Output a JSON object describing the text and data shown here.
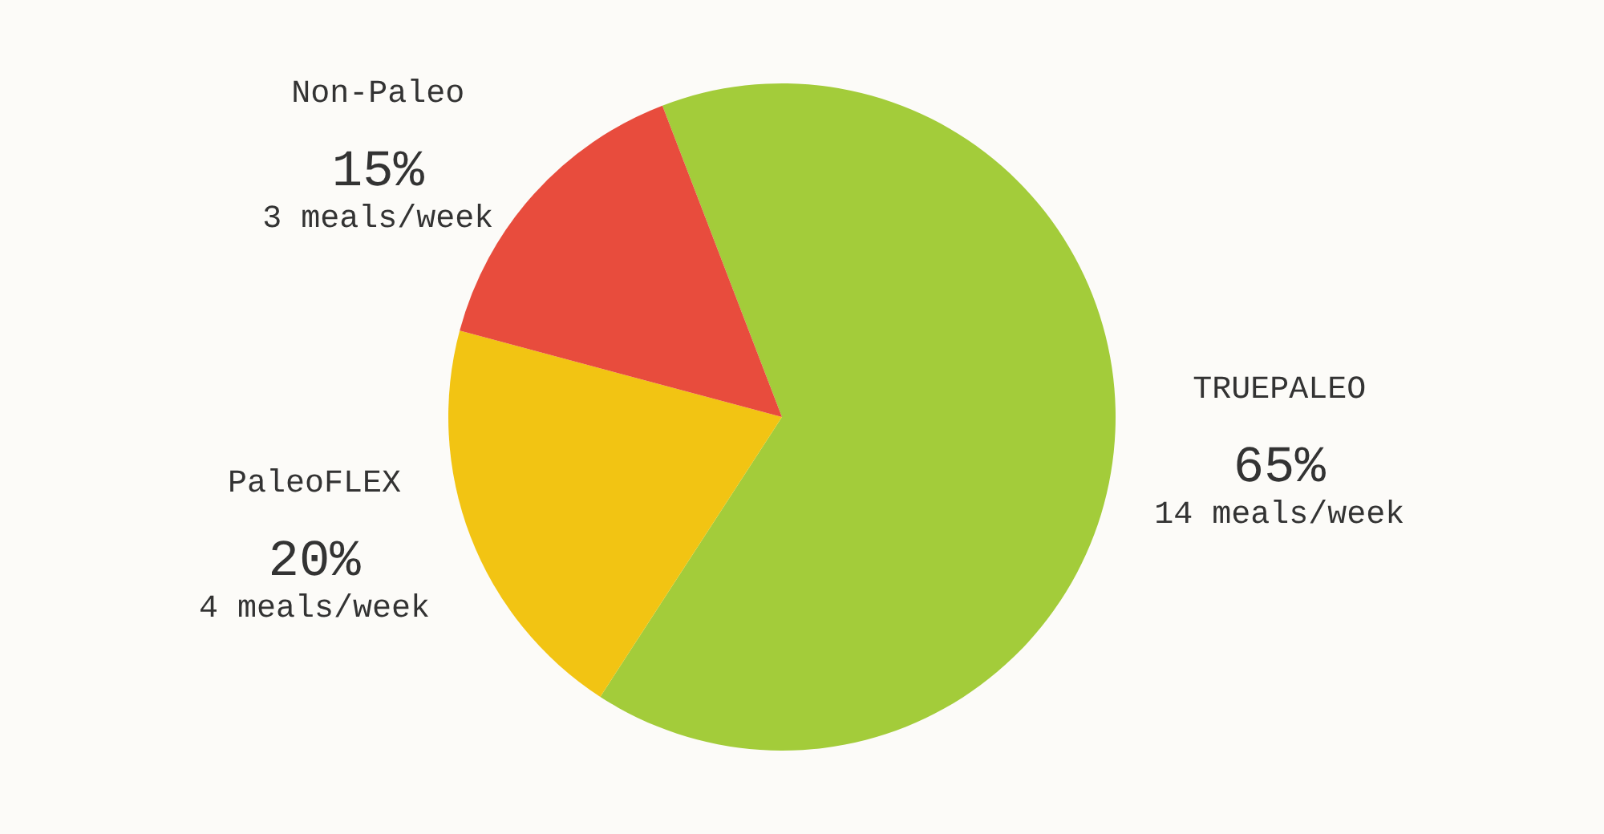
{
  "chart_data": {
    "type": "pie",
    "categories": [
      "TRUEPALEO",
      "PaleoFLEX",
      "Non-Paleo"
    ],
    "values": [
      65,
      20,
      15
    ],
    "colors": [
      "#a3cc3a",
      "#f2c413",
      "#e84c3d"
    ],
    "value_labels": [
      "65%",
      "20%",
      "15%"
    ],
    "annotations": [
      "14 meals/week",
      "4 meals/week",
      "3 meals/week"
    ]
  }
}
